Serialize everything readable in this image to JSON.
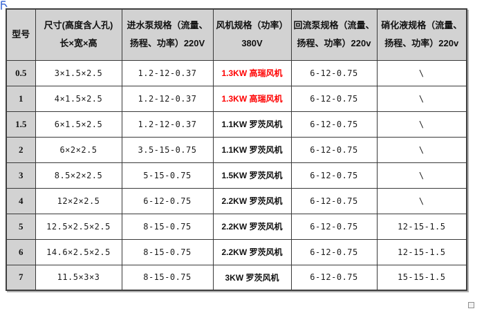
{
  "page": {
    "background": "#ffffff"
  },
  "colors": {
    "header_gray": "#d2d2d2",
    "grid_line": "#383838",
    "accent_red": "#fe0000",
    "anchor_blue": "#3f6cd6"
  },
  "icons": {
    "anchor": "table-anchor-icon",
    "resize": "table-resize-handle"
  },
  "table": {
    "header": {
      "model": "型号",
      "size_line1": "尺寸(高度含人孔)",
      "size_line2": "长×宽×高",
      "inlet_line1": "进水泵规格（流量、",
      "inlet_line2": "扬程、功率）220V",
      "fan_line1": "风机规格（功率）",
      "fan_line2": "380V",
      "return_line1": "回流泵规格（流量、",
      "return_line2": "扬程、功率）220v",
      "nitration_line1": "硝化液规格（流量、",
      "nitration_line2": "扬程、功率）220v"
    },
    "rows": [
      {
        "model": "0.5",
        "size": "3×1.5×2.5",
        "inlet_pump": "1.2-12-0.37",
        "fan": "1.3KW 高瑞风机",
        "fan_red": true,
        "return_pump": "6-12-0.75",
        "nitration": "\\"
      },
      {
        "model": "1",
        "size": "4×1.5×2.5",
        "inlet_pump": "1.2-12-0.37",
        "fan": "1.3KW 高瑞风机",
        "fan_red": true,
        "return_pump": "6-12-0.75",
        "nitration": "\\"
      },
      {
        "model": "1.5",
        "size": "6×1.5×2.5",
        "inlet_pump": "1.2-12-0.37",
        "fan": "1.1KW 罗茨风机",
        "fan_red": false,
        "return_pump": "6-12-0.75",
        "nitration": "\\"
      },
      {
        "model": "2",
        "size": "6×2×2.5",
        "inlet_pump": "3.5-15-0.75",
        "fan": "1.1KW 罗茨风机",
        "fan_red": false,
        "return_pump": "6-12-0.75",
        "nitration": "\\"
      },
      {
        "model": "3",
        "size": "8.5×2×2.5",
        "inlet_pump": "5-15-0.75",
        "fan": "1.5KW 罗茨风机",
        "fan_red": false,
        "return_pump": "6-12-0.75",
        "nitration": "\\"
      },
      {
        "model": "4",
        "size": "12×2×2.5",
        "inlet_pump": "6-12-0.75",
        "fan": "2.2KW 罗茨风机",
        "fan_red": false,
        "return_pump": "6-12-0.75",
        "nitration": "\\"
      },
      {
        "model": "5",
        "size": "12.5×2.5×2.5",
        "inlet_pump": "8-15-0.75",
        "fan": "2.2KW 罗茨风机",
        "fan_red": false,
        "return_pump": "6-12-0.75",
        "nitration": "12-15-1.5"
      },
      {
        "model": "6",
        "size": "14.6×2.5×2.5",
        "inlet_pump": "8-15-0.75",
        "fan": "2.2KW 罗茨风机",
        "fan_red": false,
        "return_pump": "6-12-0.75",
        "nitration": "12-15-1.5"
      },
      {
        "model": "7",
        "size": "11.5×3×3",
        "inlet_pump": "8-15-0.75",
        "fan": "3KW 罗茨风机",
        "fan_red": false,
        "return_pump": "6-12-0.75",
        "nitration": "15-15-1.5"
      }
    ]
  }
}
